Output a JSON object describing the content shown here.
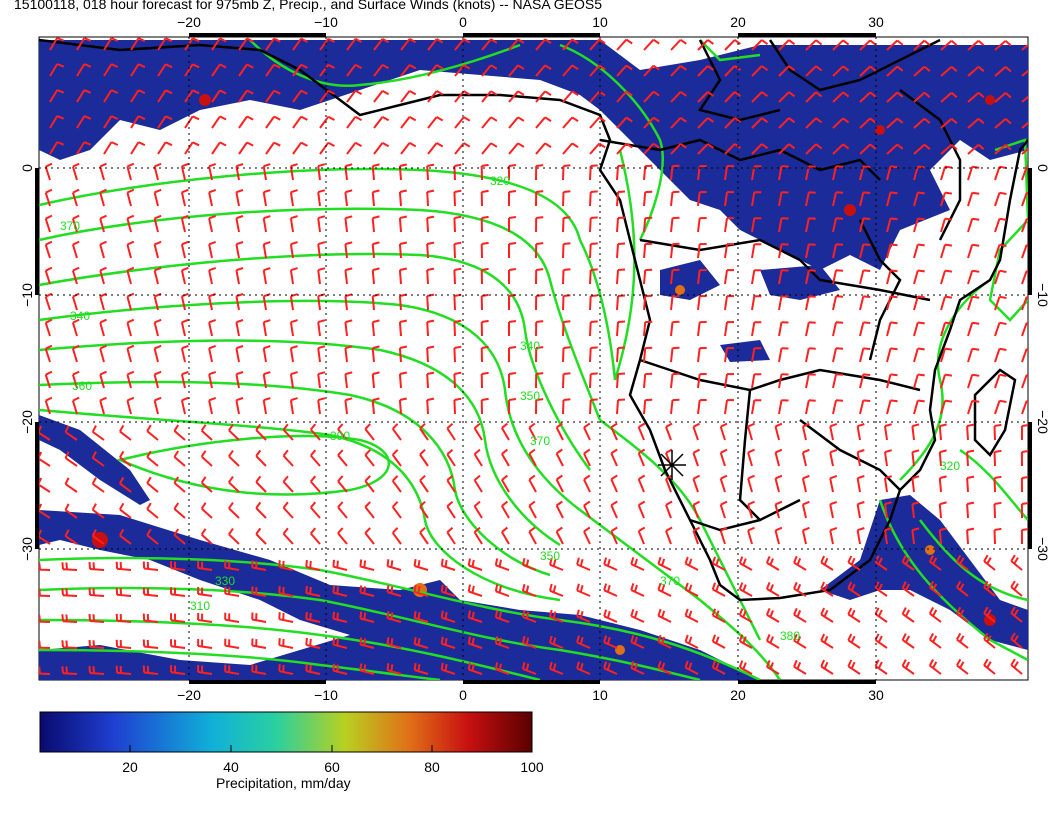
{
  "title": "15100118, 018 hour forecast for 975mb Z, Precip., and Surface Winds (knots) -- NASA GEOS5",
  "longitude_ticks": [
    "−20",
    "−10",
    "0",
    "10",
    "20",
    "30"
  ],
  "latitude_ticks": [
    "0",
    "−10",
    "−20",
    "−30"
  ],
  "contour_labels": [
    "310",
    "320",
    "330",
    "340",
    "350",
    "360",
    "370",
    "380",
    "390"
  ],
  "colorbar": {
    "title": "Precipitation, mm/day",
    "ticks": [
      "20",
      "40",
      "60",
      "80",
      "100"
    ],
    "colors": [
      "#0a0a6e",
      "#1f3fd0",
      "#10b0d8",
      "#2ad0a0",
      "#b8d020",
      "#e07018",
      "#c81010",
      "#5a0000"
    ]
  },
  "colors": {
    "precip": "#1c2b9a",
    "contour": "#22dd22",
    "barb": "#ff2020",
    "coast": "#000000",
    "grid": "#000000"
  },
  "marker_icon": "asterisk-marker-icon"
}
